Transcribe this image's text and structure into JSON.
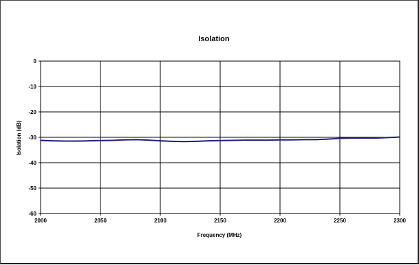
{
  "chart_data": {
    "type": "line",
    "title": "Isolation",
    "xlabel": "Frequency (MHz)",
    "ylabel": "Isolation (dB)",
    "xlim": [
      2000,
      2300
    ],
    "ylim": [
      -60,
      0
    ],
    "x_ticks": [
      2000,
      2050,
      2100,
      2150,
      2200,
      2250,
      2300
    ],
    "y_ticks": [
      0,
      -10,
      -20,
      -30,
      -40,
      -50,
      -60
    ],
    "grid": true,
    "legend": "none",
    "series": [
      {
        "color": "#1f1f7a",
        "x": [
          2000,
          2010,
          2020,
          2030,
          2040,
          2050,
          2060,
          2070,
          2080,
          2090,
          2100,
          2110,
          2120,
          2130,
          2140,
          2150,
          2160,
          2170,
          2180,
          2190,
          2200,
          2210,
          2220,
          2230,
          2240,
          2250,
          2260,
          2270,
          2280,
          2290,
          2300
        ],
        "y": [
          -31.2,
          -31.4,
          -31.5,
          -31.5,
          -31.4,
          -31.3,
          -31.2,
          -31.0,
          -30.9,
          -31.1,
          -31.4,
          -31.6,
          -31.7,
          -31.6,
          -31.4,
          -31.3,
          -31.2,
          -31.1,
          -31.1,
          -31.1,
          -31.0,
          -31.0,
          -30.9,
          -30.9,
          -30.7,
          -30.4,
          -30.3,
          -30.3,
          -30.3,
          -30.1,
          -29.9
        ]
      }
    ]
  }
}
